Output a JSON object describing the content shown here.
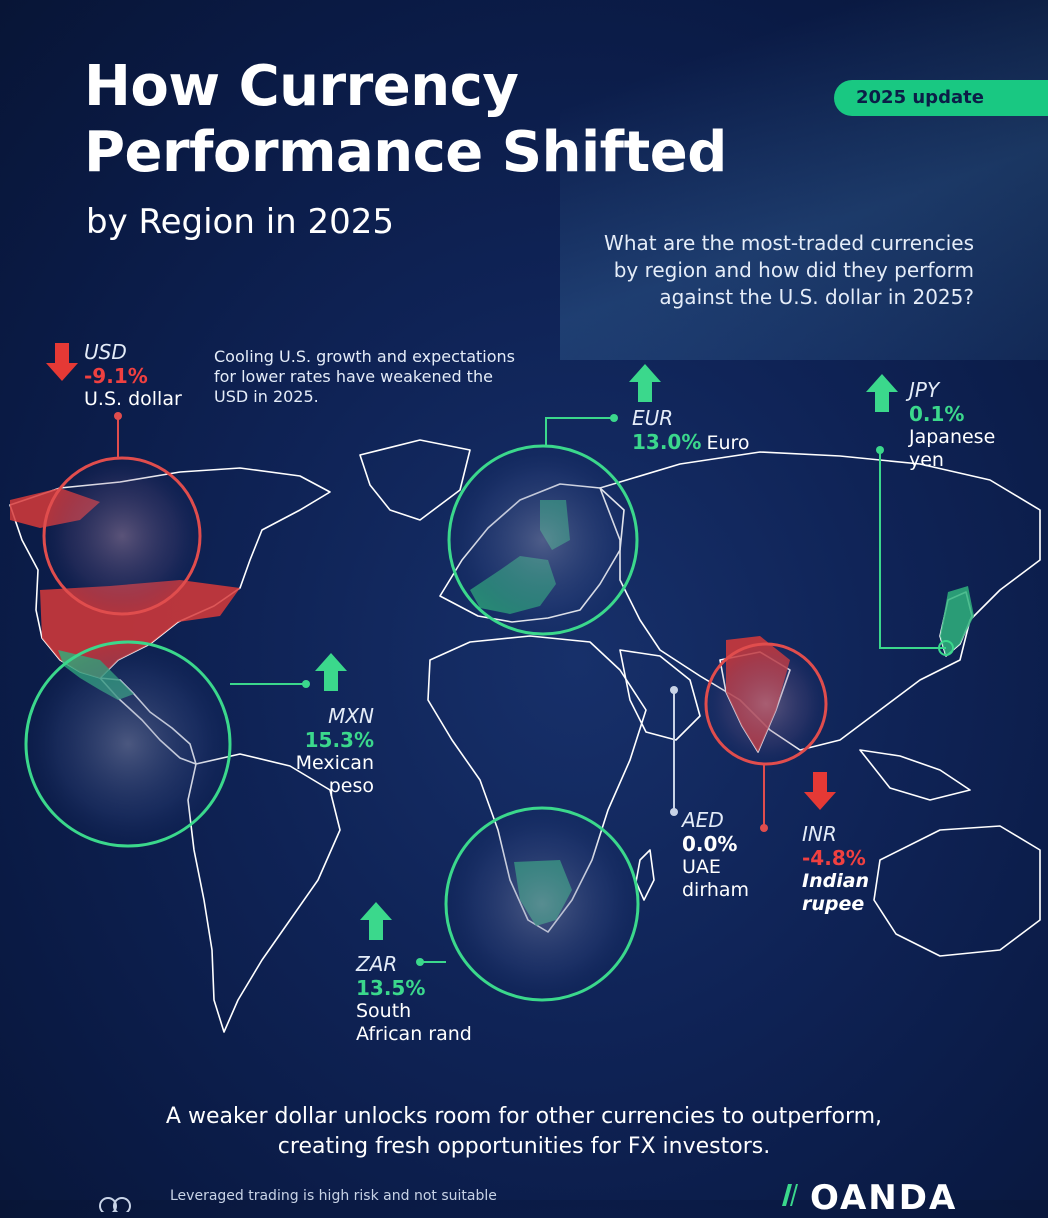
{
  "header": {
    "title_line1": "How Currency",
    "title_line2": "Performance Shifted",
    "subtitle": "by Region in 2025",
    "badge": "2025 update",
    "question_line1": "What are the most-traded currencies",
    "question_line2": "by region and how did they perform",
    "question_line3": "against the U.S. dollar in 2025?"
  },
  "note": {
    "line1": "Cooling U.S. growth and expectations",
    "line2": "for lower rates have weakened the",
    "line3": "USD in 2025."
  },
  "currencies": {
    "usd": {
      "code": "USD",
      "change": "-9.1%",
      "name": "U.S. dollar",
      "direction": "down"
    },
    "eur": {
      "code": "EUR",
      "change": "13.0%",
      "name": "Euro",
      "direction": "up"
    },
    "jpy": {
      "code": "JPY",
      "change": "0.1%",
      "name_line1": "Japanese",
      "name_line2": "yen",
      "direction": "up"
    },
    "mxn": {
      "code": "MXN",
      "change": "15.3%",
      "name_line1": "Mexican",
      "name_line2": "peso",
      "direction": "up"
    },
    "aed": {
      "code": "AED",
      "change": "0.0%",
      "name_line1": "UAE",
      "name_line2": "dirham",
      "direction": "flat"
    },
    "inr": {
      "code": "INR",
      "change": "-4.8%",
      "name_line1": "Indian",
      "name_line2": "rupee",
      "direction": "down"
    },
    "zar": {
      "code": "ZAR",
      "change": "13.5%",
      "name_line1": "South",
      "name_line2": "African rand",
      "direction": "up"
    }
  },
  "footer": {
    "message_line1": "A weaker dollar unlocks room for other currencies to outperform,",
    "message_line2": "creating fresh opportunities for FX investors.",
    "disclaimer": "Leveraged trading is high risk and not suitable",
    "brand": "OANDA"
  },
  "colors": {
    "background": "#0f2356",
    "positive": "#3bd88c",
    "negative": "#f04040",
    "badge": "#19c882"
  }
}
